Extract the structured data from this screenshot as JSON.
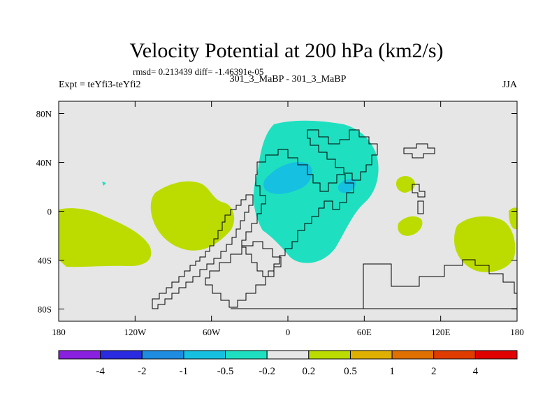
{
  "chart_data": {
    "type": "heatmap",
    "title": "Velocity Potential at 200 hPa (km2/s)",
    "stats": "rmsd= 0.213439  diff= -1.46391e-05",
    "experiment": "Expt = teYfi3-teYfi2",
    "case": "301_3_MaBP - 301_3_MaBP",
    "season": "JJA",
    "x_ticks": [
      "180",
      "120W",
      "60W",
      "0",
      "60E",
      "120E",
      "180"
    ],
    "y_ticks": [
      "80N",
      "40N",
      "0",
      "40S",
      "80S"
    ],
    "xlim": [
      -180,
      180
    ],
    "ylim": [
      -90,
      90
    ],
    "colorbar": {
      "labels": [
        "-4",
        "-2",
        "-1",
        "-0.5",
        "-0.2",
        "0.2",
        "0.5",
        "1",
        "2",
        "4"
      ],
      "colors": [
        "#8a20e0",
        "#2a2ae0",
        "#1e8ce0",
        "#16c0e0",
        "#1ee0c0",
        "#e6e6e6",
        "#bcdc00",
        "#e0b000",
        "#e07000",
        "#e03c00",
        "#e00000"
      ]
    },
    "regions": [
      {
        "name": "east-pacific-north-positive",
        "color": "#bcdc00",
        "lon": [
          -105,
          -55
        ],
        "lat": [
          -28,
          18
        ]
      },
      {
        "name": "south-pacific-positive",
        "color": "#bcdc00",
        "lon": [
          -180,
          -105
        ],
        "lat": [
          -48,
          0
        ]
      },
      {
        "name": "africa-eurasia-negative",
        "color": "#1ee0c0",
        "lon": [
          -20,
          70
        ],
        "lat": [
          -45,
          65
        ]
      },
      {
        "name": "north-atlantic-min",
        "color": "#16c0e0",
        "lon": [
          -20,
          20
        ],
        "lat": [
          15,
          35
        ]
      },
      {
        "name": "arabia-min",
        "color": "#16c0e0",
        "lon": [
          38,
          55
        ],
        "lat": [
          10,
          22
        ]
      },
      {
        "name": "maritime-continent-positive",
        "color": "#bcdc00",
        "lon": [
          85,
          105
        ],
        "lat": [
          -22,
          -5
        ]
      },
      {
        "name": "south-china-sea-positive",
        "color": "#bcdc00",
        "lon": [
          85,
          105
        ],
        "lat": [
          12,
          25
        ]
      },
      {
        "name": "west-pacific-positive",
        "color": "#bcdc00",
        "lon": [
          130,
          180
        ],
        "lat": [
          -48,
          -5
        ]
      }
    ]
  }
}
